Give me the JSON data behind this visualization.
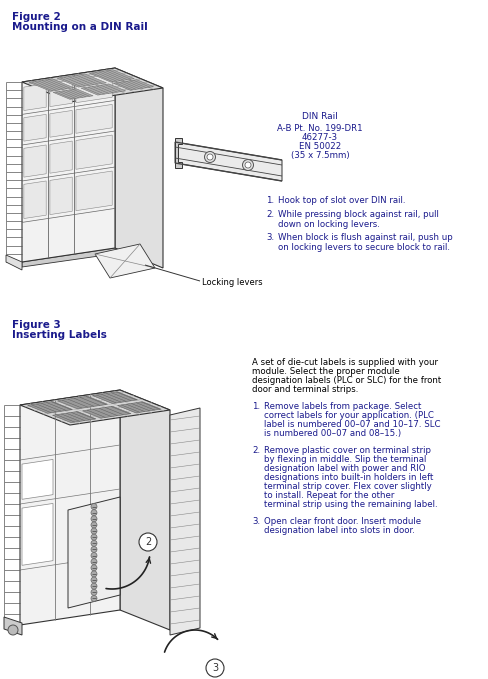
{
  "bg_color": "#ffffff",
  "fig_width": 4.89,
  "fig_height": 6.79,
  "dpi": 100,
  "fig2_title_line1": "Figure 2",
  "fig2_title_line2": "Mounting on a DIN Rail",
  "din_rail_label": "DIN Rail",
  "din_rail_info_line1": "A-B Pt. No. 199-DR1",
  "din_rail_info_line2": "46277-3",
  "din_rail_info_line3": "EN 50022",
  "din_rail_info_line4": "(35 x 7.5mm)",
  "fig2_step1": "Hook top of slot over DIN rail.",
  "fig2_step2_line1": "While pressing block against rail, pull",
  "fig2_step2_line2": "down on locking levers.",
  "fig2_step3_line1": "When block is flush against rail, push up",
  "fig2_step3_line2": "on locking levers to secure block to rail.",
  "locking_levers_label": "Locking levers",
  "fig3_title_line1": "Figure 3",
  "fig3_title_line2": "Inserting Labels",
  "fig3_intro_line1": "A set of die-cut labels is supplied with your",
  "fig3_intro_line2": "module. Select the proper module",
  "fig3_intro_line3": "designation labels (PLC or SLC) for the front",
  "fig3_intro_line4": "door and terminal strips.",
  "fig3_step1_line1": "Remove labels from package. Select",
  "fig3_step1_line2": "correct labels for your application. (PLC",
  "fig3_step1_line3": "label is numbered 00–07 and 10–17. SLC",
  "fig3_step1_line4": "is numbered 00–07 and 08–15.)",
  "fig3_step2_line1": "Remove plastic cover on terminal strip",
  "fig3_step2_line2": "by flexing in middle. Slip the terminal",
  "fig3_step2_line3": "designation label with power and RIO",
  "fig3_step2_line4": "designations into built-in holders in left",
  "fig3_step2_line5": "terminal strip cover. Flex cover slightly",
  "fig3_step2_line6": "to install. Repeat for the other",
  "fig3_step2_line7": "terminal strip using the remaining label.",
  "fig3_step3_line1": "Open clear front door. Insert module",
  "fig3_step3_line2": "designation label into slots in door.",
  "title_color": "#000000",
  "fig_label_color": "#1a1a8c",
  "step_color": "#1a1a8c",
  "din_info_color": "#1a1a8c",
  "line_color": "#333333",
  "title_fontsize": 7.5,
  "body_fontsize": 6.2,
  "step_fontsize": 6.2,
  "label_fontsize": 6.0,
  "din_label_fontsize": 6.5
}
